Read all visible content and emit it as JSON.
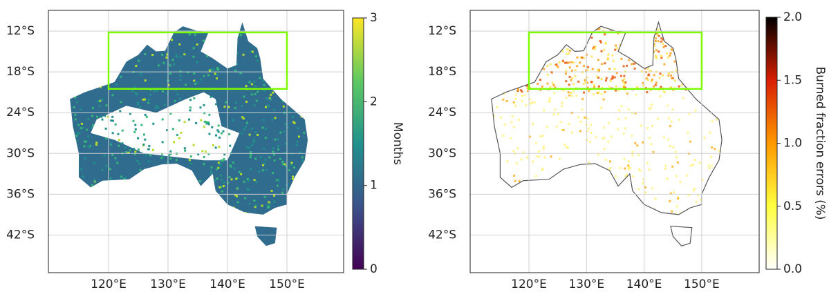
{
  "panels": [
    {
      "lat_ticks": [
        "12°S",
        "18°S",
        "24°S",
        "30°S",
        "36°S",
        "42°S"
      ],
      "lon_ticks": [
        "120°E",
        "130°E",
        "140°E",
        "150°E"
      ],
      "colorbar": {
        "label": "Months",
        "ticks": [
          "0",
          "1",
          "2",
          "3"
        ]
      }
    },
    {
      "lat_ticks": [
        "12°S",
        "18°S",
        "24°S",
        "30°S",
        "36°S",
        "42°S"
      ],
      "lon_ticks": [
        "120°E",
        "130°E",
        "140°E",
        "150°E"
      ],
      "colorbar": {
        "label": "Burned fraction errors (%)",
        "ticks": [
          "0.0",
          "0.5",
          "1.0",
          "1.5",
          "2.0"
        ]
      }
    }
  ]
}
